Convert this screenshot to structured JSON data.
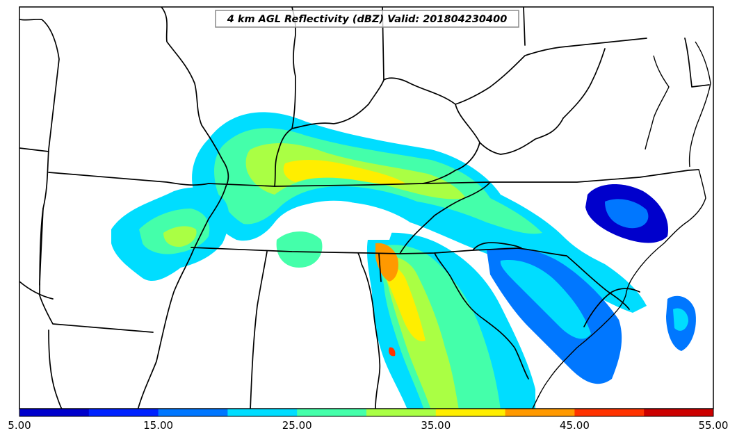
{
  "map": {
    "title": "4 km AGL Reflectivity (dBZ) Valid: 201804230400",
    "field": "reflectivity",
    "units": "dBZ"
  },
  "colorbar": {
    "min": 5,
    "max": 55,
    "step": 5,
    "colors": [
      "#0000cc",
      "#0022ff",
      "#0077ff",
      "#00ddff",
      "#44ffaa",
      "#aaff44",
      "#ffee00",
      "#ff9900",
      "#ff3300",
      "#cc0000"
    ],
    "tick_labels": [
      "5.00",
      "15.00",
      "25.00",
      "35.00",
      "45.00",
      "55.00"
    ]
  }
}
